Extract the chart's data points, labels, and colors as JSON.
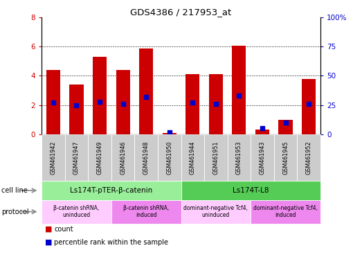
{
  "title": "GDS4386 / 217953_at",
  "samples": [
    "GSM461942",
    "GSM461947",
    "GSM461949",
    "GSM461946",
    "GSM461948",
    "GSM461950",
    "GSM461944",
    "GSM461951",
    "GSM461953",
    "GSM461943",
    "GSM461945",
    "GSM461952"
  ],
  "counts": [
    4.4,
    3.4,
    5.3,
    4.4,
    5.85,
    0.08,
    4.1,
    4.1,
    6.05,
    0.35,
    1.0,
    3.8
  ],
  "percentiles": [
    27,
    25,
    28,
    26,
    32,
    2,
    27,
    26,
    33,
    5,
    10,
    26
  ],
  "ylim_left": [
    0,
    8
  ],
  "ylim_right": [
    0,
    100
  ],
  "yticks_left": [
    0,
    2,
    4,
    6,
    8
  ],
  "yticks_right": [
    0,
    25,
    50,
    75,
    100
  ],
  "ytick_labels_right": [
    "0",
    "25",
    "50",
    "75",
    "100%"
  ],
  "bar_color": "#cc0000",
  "dot_color": "#0000cc",
  "cell_line_groups": [
    {
      "label": "Ls174T-pTER-β-catenin",
      "start": 0,
      "end": 6,
      "color": "#99ee99"
    },
    {
      "label": "Ls174T-L8",
      "start": 6,
      "end": 12,
      "color": "#55cc55"
    }
  ],
  "protocol_groups": [
    {
      "label": "β-catenin shRNA,\nuninduced",
      "start": 0,
      "end": 3,
      "color": "#ffccff"
    },
    {
      "label": "β-catenin shRNA,\ninduced",
      "start": 3,
      "end": 6,
      "color": "#ee88ee"
    },
    {
      "label": "dominant-negative Tcf4,\nuninduced",
      "start": 6,
      "end": 9,
      "color": "#ffccff"
    },
    {
      "label": "dominant-negative Tcf4,\ninduced",
      "start": 9,
      "end": 12,
      "color": "#ee88ee"
    }
  ],
  "cell_line_label": "cell line",
  "protocol_label": "protocol",
  "legend_count_label": "count",
  "legend_pct_label": "percentile rank within the sample",
  "sample_box_color": "#cccccc",
  "bg_color": "#ffffff"
}
